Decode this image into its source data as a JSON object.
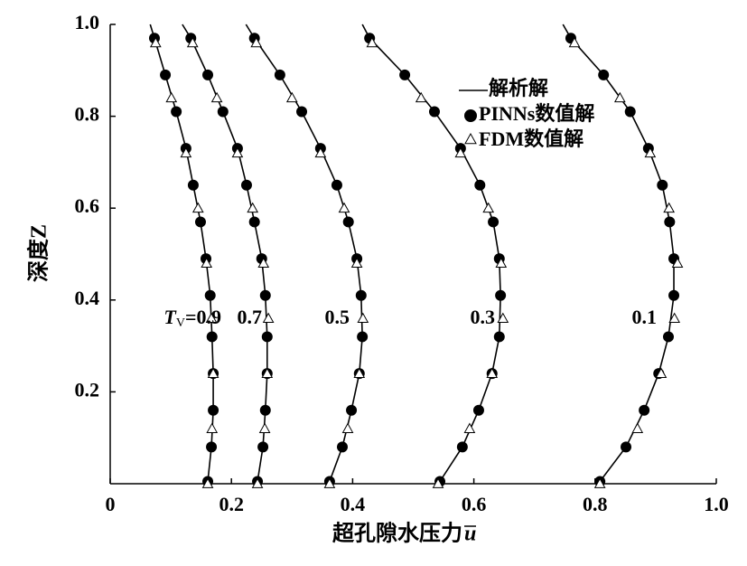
{
  "chart_data": {
    "type": "line",
    "x_label": "超孔隙水压力",
    "x_label_symbol": "u",
    "y_label": "深度Z",
    "xlim": [
      0,
      1
    ],
    "ylim": [
      0,
      1
    ],
    "xticks": [
      0,
      0.2,
      0.4,
      0.6,
      0.8,
      {
        "value": 1,
        "label": "1.0"
      }
    ],
    "yticks": [
      0.2,
      0.4,
      0.6,
      0.8,
      {
        "value": 1,
        "label": "1.0"
      }
    ],
    "curve_label_prefix": {
      "symbol": "T",
      "subscript": "V",
      "sign": "="
    },
    "curve_labels": [
      "0.9",
      "0.7",
      "0.5",
      "0.3",
      "0.1"
    ],
    "series": [
      {
        "name": "解析解",
        "type": "line",
        "color": "#000000",
        "y": [
          1.0,
          0.97,
          0.89,
          0.81,
          0.73,
          0.65,
          0.57,
          0.49,
          0.41,
          0.32,
          0.24,
          0.16,
          0.08,
          0.005
        ],
        "curves": [
          {
            "x": [
              0.066,
              0.073,
              0.091,
              0.109,
              0.125,
              0.137,
              0.149,
              0.158,
              0.165,
              0.168,
              0.17,
              0.17,
              0.167,
              0.161
            ]
          },
          {
            "x": [
              0.119,
              0.133,
              0.161,
              0.186,
              0.21,
              0.225,
              0.238,
              0.25,
              0.256,
              0.259,
              0.259,
              0.256,
              0.252,
              0.243
            ]
          },
          {
            "x": [
              0.224,
              0.238,
              0.28,
              0.316,
              0.347,
              0.374,
              0.393,
              0.407,
              0.414,
              0.416,
              0.411,
              0.398,
              0.383,
              0.362
            ]
          },
          {
            "x": [
              0.416,
              0.428,
              0.486,
              0.535,
              0.578,
              0.61,
              0.632,
              0.642,
              0.644,
              0.642,
              0.63,
              0.608,
              0.581,
              0.544
            ]
          },
          {
            "x": [
              0.747,
              0.76,
              0.814,
              0.858,
              0.888,
              0.911,
              0.923,
              0.93,
              0.93,
              0.921,
              0.905,
              0.881,
              0.851,
              0.808
            ]
          }
        ]
      },
      {
        "name": "PINNs数值解",
        "type": "scatter",
        "marker": "circle",
        "color": "#000000",
        "y": [
          0.97,
          0.89,
          0.81,
          0.73,
          0.65,
          0.57,
          0.49,
          0.41,
          0.32,
          0.24,
          0.16,
          0.08,
          0.005
        ],
        "curves": [
          {
            "x": [
              0.073,
              0.091,
              0.109,
              0.125,
              0.137,
              0.149,
              0.158,
              0.165,
              0.168,
              0.17,
              0.17,
              0.167,
              0.161
            ]
          },
          {
            "x": [
              0.133,
              0.161,
              0.186,
              0.21,
              0.225,
              0.238,
              0.25,
              0.256,
              0.259,
              0.259,
              0.256,
              0.252,
              0.243
            ]
          },
          {
            "x": [
              0.238,
              0.28,
              0.316,
              0.347,
              0.374,
              0.393,
              0.407,
              0.414,
              0.416,
              0.411,
              0.398,
              0.383,
              0.362
            ]
          },
          {
            "x": [
              0.428,
              0.486,
              0.535,
              0.578,
              0.61,
              0.632,
              0.642,
              0.644,
              0.642,
              0.63,
              0.608,
              0.581,
              0.544
            ]
          },
          {
            "x": [
              0.76,
              0.814,
              0.858,
              0.888,
              0.911,
              0.923,
              0.93,
              0.93,
              0.921,
              0.905,
              0.881,
              0.851,
              0.808
            ]
          }
        ]
      },
      {
        "name": "FDM数值解",
        "type": "scatter",
        "marker": "triangle",
        "color": "#000000",
        "y": [
          0.96,
          0.84,
          0.72,
          0.6,
          0.48,
          0.36,
          0.24,
          0.12,
          0.0
        ],
        "curves": [
          {
            "x": [
              0.075,
              0.101,
              0.125,
              0.145,
              0.159,
              0.167,
              0.17,
              0.168,
              0.161
            ]
          },
          {
            "x": [
              0.136,
              0.176,
              0.21,
              0.235,
              0.253,
              0.261,
              0.259,
              0.255,
              0.243
            ]
          },
          {
            "x": [
              0.241,
              0.3,
              0.347,
              0.386,
              0.407,
              0.417,
              0.411,
              0.392,
              0.362
            ]
          },
          {
            "x": [
              0.432,
              0.513,
              0.578,
              0.624,
              0.645,
              0.648,
              0.63,
              0.593,
              0.541
            ]
          },
          {
            "x": [
              0.766,
              0.841,
              0.891,
              0.922,
              0.936,
              0.931,
              0.909,
              0.87,
              0.808
            ]
          }
        ]
      }
    ]
  }
}
